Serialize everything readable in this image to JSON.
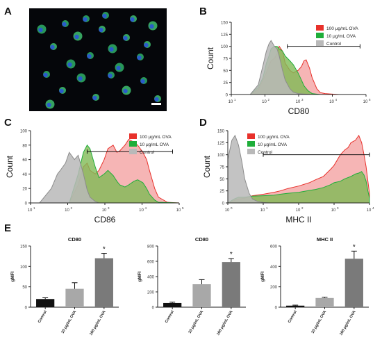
{
  "panels": {
    "a": "A",
    "b": "B",
    "c": "C",
    "d": "D",
    "e": "E"
  },
  "micro_scalebar": "",
  "colors": {
    "red": "#e8312b",
    "red_fill": "#f4a3a3",
    "green": "#1fae3a",
    "green_fill": "#7fba55",
    "gray": "#8c8c8c",
    "gray_fill": "#b9b9b9",
    "dark": "#111111",
    "mid": "#a8a8a8",
    "bar_dark": "#7a7a7a"
  },
  "chart_data": [
    {
      "id": "B",
      "type": "area",
      "ylabel": "Count",
      "xlabel": "CD80",
      "xscale": "log",
      "xlim": [
        1,
        100000
      ],
      "ylim": [
        0,
        150
      ],
      "yticks": [
        "0",
        "25",
        "50",
        "75",
        "100",
        "125",
        "150"
      ],
      "xticks": [
        {
          "label": "10",
          "sup": "1"
        },
        {
          "label": "10",
          "sup": "2"
        },
        {
          "label": "10",
          "sup": "3"
        },
        {
          "label": "10",
          "sup": "4"
        },
        {
          "label": "10",
          "sup": "5"
        }
      ],
      "legend": [
        "100 μg/mL OVA",
        "10 μg/mL OVA",
        "Control"
      ],
      "series": [
        {
          "name": "100 μg/mL OVA",
          "color": "red",
          "x": [
            5,
            10,
            20,
            30,
            40,
            50,
            60,
            80,
            100,
            150,
            200,
            300,
            400,
            500,
            600,
            800,
            1000,
            1500,
            2000,
            3000,
            5000,
            10000,
            100000
          ],
          "y": [
            0,
            10,
            45,
            70,
            75,
            85,
            100,
            90,
            65,
            50,
            45,
            50,
            58,
            70,
            72,
            55,
            35,
            12,
            4,
            2,
            1,
            0,
            0
          ]
        },
        {
          "name": "10 μg/mL OVA",
          "color": "green",
          "x": [
            5,
            10,
            15,
            20,
            25,
            30,
            40,
            50,
            60,
            80,
            100,
            150,
            200,
            300,
            400,
            500,
            700,
            1000,
            2000,
            100000
          ],
          "y": [
            0,
            15,
            35,
            65,
            80,
            95,
            100,
            100,
            95,
            90,
            80,
            70,
            62,
            45,
            30,
            18,
            8,
            2,
            0,
            0
          ]
        },
        {
          "name": "Control",
          "color": "gray",
          "x": [
            5,
            10,
            15,
            20,
            25,
            30,
            40,
            50,
            60,
            80,
            100,
            150,
            200,
            300,
            500,
            1000,
            100000
          ],
          "y": [
            0,
            20,
            60,
            90,
            105,
            112,
            100,
            95,
            80,
            50,
            30,
            12,
            5,
            2,
            1,
            0,
            0
          ]
        }
      ],
      "gate": {
        "x": [
          120,
          60000
        ],
        "y": 100
      }
    },
    {
      "id": "C",
      "type": "area",
      "ylabel": "Count",
      "xlabel": "CD86",
      "xscale": "log",
      "xlim": [
        1,
        100000
      ],
      "ylim": [
        0,
        100
      ],
      "yticks": [
        "0",
        "20",
        "40",
        "60",
        "80",
        "100"
      ],
      "xticks": [
        {
          "label": "10",
          "sup": "1"
        },
        {
          "label": "10",
          "sup": "2"
        },
        {
          "label": "10",
          "sup": "3"
        },
        {
          "label": "10",
          "sup": "4"
        },
        {
          "label": "10",
          "sup": "5"
        }
      ],
      "legend": [
        "100 μg/mL OVA",
        "10 μg/mL OVA",
        "Control"
      ],
      "series": [
        {
          "name": "100 μg/mL OVA",
          "color": "red",
          "x": [
            20,
            40,
            60,
            80,
            100,
            150,
            200,
            300,
            400,
            600,
            800,
            1000,
            1500,
            2000,
            3000,
            4000,
            6000,
            8000,
            10000,
            15000,
            20000,
            40000,
            100000
          ],
          "y": [
            0,
            25,
            50,
            55,
            45,
            40,
            45,
            60,
            75,
            80,
            70,
            72,
            80,
            88,
            84,
            80,
            70,
            60,
            45,
            20,
            8,
            1,
            0
          ]
        },
        {
          "name": "10 μg/mL OVA",
          "color": "green",
          "x": [
            20,
            40,
            60,
            80,
            100,
            150,
            200,
            300,
            400,
            600,
            800,
            1000,
            1500,
            2000,
            3000,
            4000,
            6000,
            8000,
            10000,
            15000,
            20000,
            100000
          ],
          "y": [
            0,
            40,
            70,
            80,
            75,
            50,
            35,
            40,
            45,
            38,
            30,
            25,
            22,
            25,
            30,
            32,
            28,
            20,
            12,
            4,
            1,
            0
          ]
        },
        {
          "name": "Control",
          "color": "gray",
          "x": [
            2,
            5,
            8,
            10,
            15,
            20,
            30,
            40,
            60,
            80,
            100,
            150,
            200,
            500,
            100000
          ],
          "y": [
            0,
            20,
            40,
            45,
            55,
            70,
            60,
            66,
            40,
            18,
            8,
            2,
            0,
            0,
            0
          ]
        }
      ],
      "gate": {
        "x": [
          80,
          60000
        ],
        "y": 71
      }
    },
    {
      "id": "D",
      "type": "area",
      "ylabel": "Count",
      "xlabel": "MHC II",
      "xscale": "log",
      "xlim": [
        1,
        10000
      ],
      "ylim": [
        0,
        150
      ],
      "yticks": [
        "0",
        "25",
        "50",
        "75",
        "100",
        "125",
        "150"
      ],
      "xticks": [
        {
          "label": "10",
          "sup": "0"
        },
        {
          "label": "10",
          "sup": "1"
        },
        {
          "label": "10",
          "sup": "2"
        },
        {
          "label": "10",
          "sup": "3"
        },
        {
          "label": "10",
          "sup": "4"
        }
      ],
      "legend": [
        "100 μg/mL OVA",
        "10 μg/mL OVA",
        "Control"
      ],
      "series": [
        {
          "name": "100 μg/mL OVA",
          "color": "red",
          "x": [
            1,
            1.5,
            2,
            3,
            5,
            10,
            20,
            30,
            50,
            100,
            200,
            300,
            500,
            800,
            1000,
            1500,
            2000,
            2500,
            3000,
            4000,
            5000,
            6000,
            7000,
            8000,
            9000,
            10000
          ],
          "y": [
            0,
            5,
            8,
            10,
            15,
            18,
            22,
            25,
            30,
            35,
            42,
            48,
            55,
            70,
            78,
            100,
            110,
            115,
            125,
            130,
            140,
            125,
            100,
            75,
            45,
            20
          ]
        },
        {
          "name": "10 μg/mL OVA",
          "color": "green",
          "x": [
            1,
            1.5,
            2,
            3,
            5,
            10,
            20,
            30,
            50,
            100,
            200,
            300,
            500,
            800,
            1000,
            1500,
            2000,
            3000,
            4000,
            5000,
            6000,
            7000,
            8000,
            9000,
            10000
          ],
          "y": [
            0,
            8,
            12,
            12,
            14,
            15,
            16,
            18,
            20,
            22,
            26,
            28,
            32,
            38,
            42,
            45,
            50,
            55,
            60,
            62,
            65,
            58,
            45,
            25,
            10
          ]
        },
        {
          "name": "Control",
          "color": "gray",
          "x": [
            1,
            1.3,
            1.6,
            2,
            2.5,
            3,
            4,
            5,
            7,
            10,
            15,
            20,
            10000
          ],
          "y": [
            90,
            130,
            140,
            120,
            85,
            50,
            20,
            8,
            3,
            1,
            0,
            0,
            0
          ]
        }
      ],
      "gate": {
        "x": [
          10,
          10000
        ],
        "y": 100
      }
    },
    {
      "id": "E1",
      "type": "bar",
      "title": "CD80",
      "ylabel": "gMFI",
      "categories": [
        "Control",
        "10 μg/mL OVA",
        "100 μg/mL OVA"
      ],
      "values": [
        20,
        45,
        120
      ],
      "errors": [
        3,
        15,
        12
      ],
      "ylim": [
        0,
        150
      ],
      "yticks": [
        "0",
        "50",
        "100",
        "150"
      ],
      "annotation": "*"
    },
    {
      "id": "E2",
      "type": "bar",
      "title": "CD80",
      "ylabel": "gMFI",
      "categories": [
        "Control",
        "10 μg/mL OVA",
        "100 μg/mL OVA"
      ],
      "values": [
        55,
        300,
        590
      ],
      "errors": [
        10,
        60,
        45
      ],
      "ylim": [
        0,
        800
      ],
      "yticks": [
        "0",
        "200",
        "400",
        "600",
        "800"
      ],
      "annotation": "*"
    },
    {
      "id": "E3",
      "type": "bar",
      "title": "MHC II",
      "ylabel": "gMFI",
      "categories": [
        "Control",
        "10 μg/mL OVA",
        "100 μg/mL OVA"
      ],
      "values": [
        15,
        90,
        475
      ],
      "errors": [
        5,
        8,
        75
      ],
      "ylim": [
        0,
        600
      ],
      "yticks": [
        "0",
        "200",
        "400",
        "600"
      ],
      "annotation": "*"
    }
  ]
}
